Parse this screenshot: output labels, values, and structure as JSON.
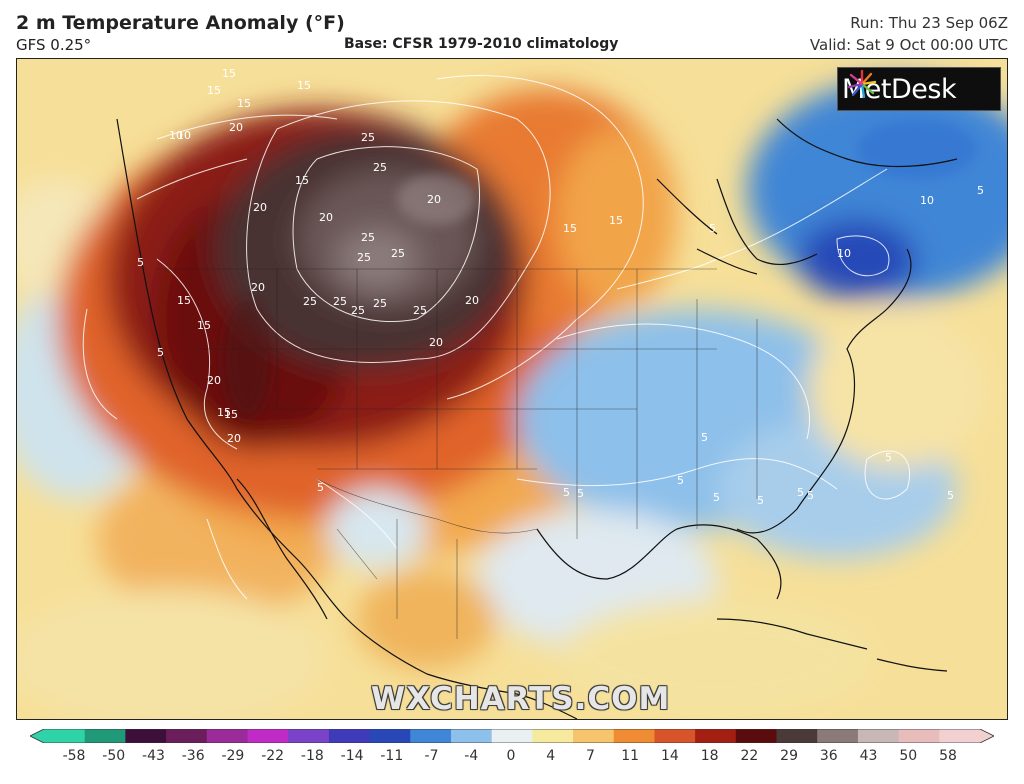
{
  "header": {
    "title": "2 m Temperature Anomaly (°F)",
    "model": "GFS 0.25°",
    "base": "Base: CFSR 1979-2010 climatology",
    "run": "Run: Thu 23 Sep 06Z",
    "valid": "Valid: Sat 9 Oct 00:00 UTC"
  },
  "logo": {
    "text": "MetDesk",
    "icon": "metdesk-starburst-icon"
  },
  "watermark": "WXCHARTS.COM",
  "map": {
    "contour_labels": [
      "15",
      "15",
      "15",
      "15",
      "10",
      "20",
      "25",
      "25",
      "15",
      "20",
      "20",
      "25",
      "25",
      "25",
      "20",
      "20",
      "25",
      "25",
      "25",
      "25",
      "25",
      "20",
      "20",
      "15",
      "15",
      "15",
      "20",
      "15",
      "20",
      "10",
      "15",
      "15",
      "5",
      "5",
      "5",
      "5",
      "5",
      "5",
      "5",
      "10",
      "10",
      "5",
      "5",
      "5",
      "5",
      "5",
      "5",
      "5",
      "5"
    ]
  },
  "colorbar": {
    "unit": "°F",
    "ticks": [
      "-58",
      "-50",
      "-43",
      "-36",
      "-29",
      "-22",
      "-18",
      "-14",
      "-11",
      "-7",
      "-4",
      "0",
      "4",
      "7",
      "11",
      "14",
      "18",
      "22",
      "29",
      "36",
      "43",
      "50",
      "58"
    ],
    "colors": [
      "#2fd3a7",
      "#1f9977",
      "#3f0f3c",
      "#6b1d5c",
      "#9b2b98",
      "#c02bc7",
      "#7b43c9",
      "#3e3ab9",
      "#2848b8",
      "#3f86d6",
      "#8dc0ea",
      "#e8f0f2",
      "#f6ea9e",
      "#f6c46a",
      "#ef8c33",
      "#d8542a",
      "#a21f12",
      "#5a0b0b",
      "#4a3a3a",
      "#8a7a7a",
      "#c7b7b7",
      "#e9bcbc",
      "#f3d0d0"
    ]
  }
}
